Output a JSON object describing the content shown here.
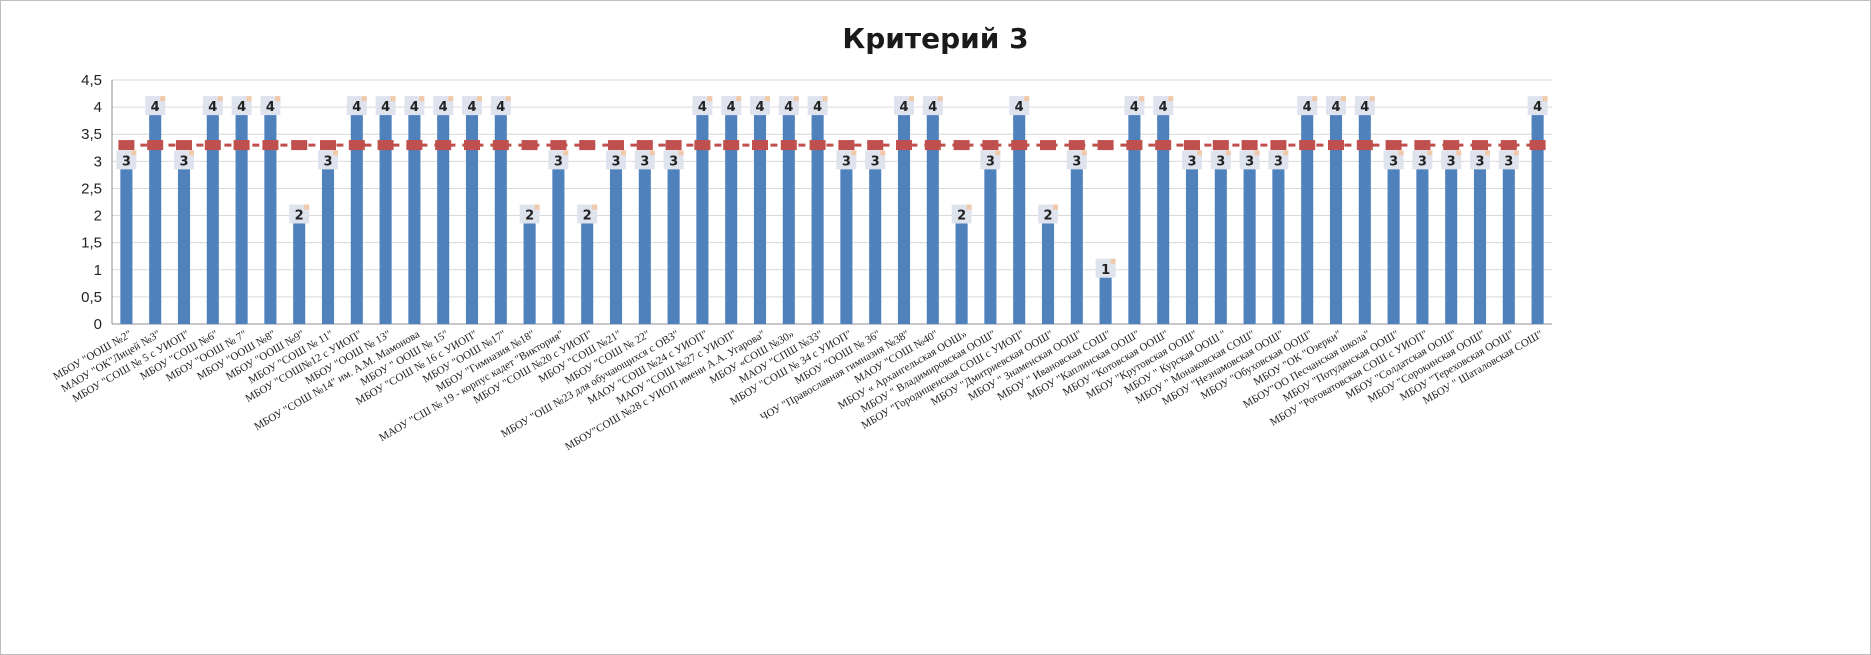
{
  "chart_data": {
    "type": "bar",
    "title": "Критерий 3",
    "xlabel": "",
    "ylabel": "",
    "ylim": [
      0,
      4.5
    ],
    "yticks": [
      "0",
      "0,5",
      "1",
      "1,5",
      "2",
      "2,5",
      "3",
      "3,5",
      "4",
      "4,5"
    ],
    "grid": true,
    "legend": "none",
    "categories": [
      "МБОУ \"ООШ №2\"",
      "МАОУ \"ОК\"Лицей №3\"",
      "МБОУ \"СОШ № 5 с УИОП\"",
      "МБОУ \"СОШ №6\"",
      "МБОУ \"ООШ № 7\"",
      "МБОУ \"ООШ №8\"",
      "МБОУ \"ООШ №9\"",
      "МБОУ \"СОШ № 11\"",
      "МБОУ \"СОШ№12 с УИОП\"",
      "МБОУ \"ООШ № 13\"",
      "МБОУ \"СОШ №14\" им. А.М. Мамонова",
      "МБОУ \" ООШ № 15\"",
      "МБОУ \"СОШ № 16 с УИОП\"",
      "МБОУ \"ООШ №17\"",
      "МБОУ \"Гимназия №18\"",
      "МАОУ \"СШ № 19 - корпус кадет \"Виктория\"",
      "МБОУ \"СОШ №20 с УИОП\"",
      "МБОУ \"СОШ №21\"",
      "МБОУ \"СОШ № 22\"",
      "МБОУ \"ОШ №23 для обучающихся с ОВЗ\"",
      "МАОУ \"СОШ №24 с УИОП\"",
      "МАОУ \"СОШ №27 с УИОП\"",
      "МБОУ\"СОШ №28 с УИОП имени А.А. Угарова\"",
      "МБОУ «СОШ №30»",
      "МАОУ \"СПШ №33\"",
      "МБОУ \"СОШ № 34 с УИОП\"",
      "МБОУ \"ООШ № 36\"",
      "ЧОУ \"Православная гимназия №38\"",
      "МАОУ \"СОШ №40\"",
      "МБОУ « Архангельская ООШ»",
      "МБОУ \" Владимировская ООШ\"",
      "МБОУ \"Городищенская СОШ с УИОП\"",
      "МБОУ \"Дмитриевская ООШ\"",
      "МБОУ \" Знаменская ООШ\"",
      "МБОУ \" Ивановская СОШ\"",
      "МБОУ \"Каплинская ООШ\"",
      "МБОУ \"Котовская ООШ\"",
      "МБОУ \"Крутовская ООШ\"",
      "МБОУ \" Курская ООШ \"",
      "МБОУ \" Монаковская СОШ\"",
      "МБОУ \"Незнамовская ООШ\"",
      "МБОУ \"Обуховская ООШ\"",
      "МБОУ \"ОК \"Озерки\"",
      "МБОУ\"ОО Песчанская школа\"",
      "МБОУ \"Потуданская ООШ\"",
      "МБОУ \"Роговатовская СОШ с УИОП\"",
      "МБОУ \"Солдатская ООШ\"",
      "МБОУ \"Сорокинская ООШ\"",
      "МБОУ \"Тереховская ООШ\"",
      "МБОУ \" Шаталовская СОШ\""
    ],
    "series": [
      {
        "type": "bar",
        "color": "#4f81bd",
        "values": [
          3,
          4,
          3,
          4,
          4,
          4,
          2,
          3,
          4,
          4,
          4,
          4,
          4,
          4,
          2,
          3,
          2,
          3,
          3,
          3,
          4,
          4,
          4,
          4,
          4,
          3,
          3,
          4,
          4,
          2,
          3,
          4,
          2,
          3,
          1,
          4,
          4,
          3,
          3,
          3,
          3,
          4,
          4,
          4,
          3,
          3,
          3,
          3,
          3,
          4
        ]
      },
      {
        "type": "line",
        "style": "dashed-markers",
        "color": "#c0504d",
        "values": [
          3.3,
          3.3,
          3.3,
          3.3,
          3.3,
          3.3,
          3.3,
          3.3,
          3.3,
          3.3,
          3.3,
          3.3,
          3.3,
          3.3,
          3.3,
          3.3,
          3.3,
          3.3,
          3.3,
          3.3,
          3.3,
          3.3,
          3.3,
          3.3,
          3.3,
          3.3,
          3.3,
          3.3,
          3.3,
          3.3,
          3.3,
          3.3,
          3.3,
          3.3,
          3.3,
          3.3,
          3.3,
          3.3,
          3.3,
          3.3,
          3.3,
          3.3,
          3.3,
          3.3,
          3.3,
          3.3,
          3.3,
          3.3,
          3.3,
          3.3
        ]
      }
    ]
  }
}
